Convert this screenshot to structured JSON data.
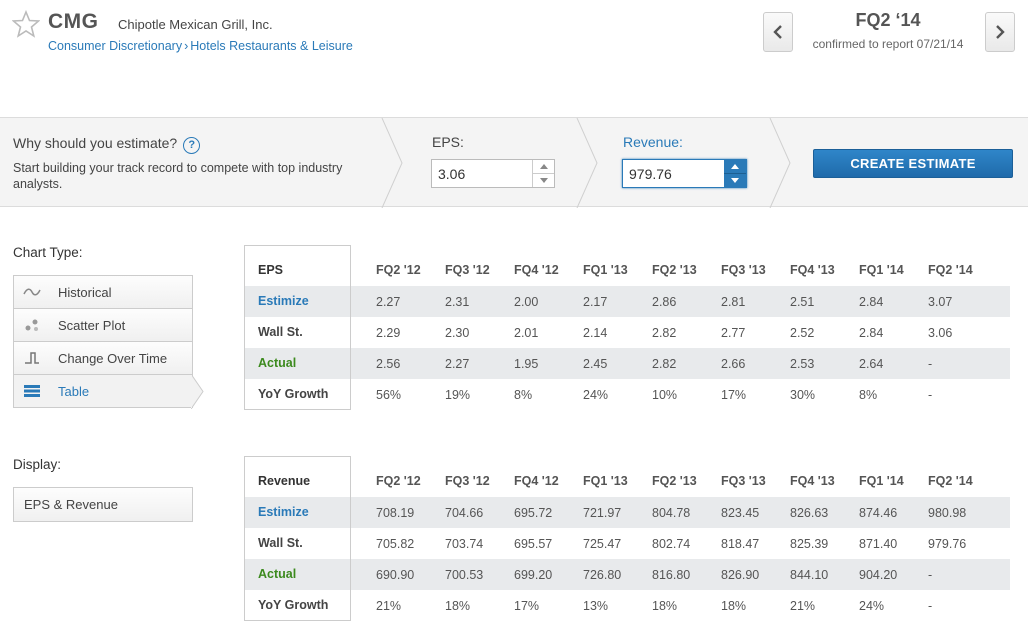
{
  "header": {
    "ticker": "CMG",
    "company": "Chipotle Mexican Grill, Inc.",
    "sector": "Consumer Discretionary",
    "industry": "Hotels Restaurants & Leisure",
    "breadcrumb_sep": "›",
    "quarter": "FQ2 ‘14",
    "confirmed": "confirmed to report 07/21/14"
  },
  "estimate": {
    "why": "Why should you estimate?",
    "help": "?",
    "description": "Start building your track record to compete with top industry analysts.",
    "eps_label": "EPS:",
    "eps_value": "3.06",
    "revenue_label": "Revenue:",
    "revenue_value": "979.76",
    "create_label": "CREATE ESTIMATE"
  },
  "chart_type": {
    "title": "Chart Type:",
    "items": [
      {
        "label": "Historical",
        "icon": "wave-icon"
      },
      {
        "label": "Scatter Plot",
        "icon": "scatter-icon"
      },
      {
        "label": "Change Over Time",
        "icon": "step-icon"
      },
      {
        "label": "Table",
        "icon": "table-icon",
        "active": true
      }
    ]
  },
  "display": {
    "title": "Display:",
    "value": "EPS & Revenue"
  },
  "eps_table": {
    "header": "EPS",
    "quarters": [
      "FQ2 '12",
      "FQ3 '12",
      "FQ4 '12",
      "FQ1 '13",
      "FQ2 '13",
      "FQ3 '13",
      "FQ4 '13",
      "FQ1 '14",
      "FQ2 '14"
    ],
    "rows": [
      {
        "label": "Estimize",
        "values": [
          "2.27",
          "2.31",
          "2.00",
          "2.17",
          "2.86",
          "2.81",
          "2.51",
          "2.84",
          "3.07"
        ]
      },
      {
        "label": "Wall St.",
        "values": [
          "2.29",
          "2.30",
          "2.01",
          "2.14",
          "2.82",
          "2.77",
          "2.52",
          "2.84",
          "3.06"
        ]
      },
      {
        "label": "Actual",
        "values": [
          "2.56",
          "2.27",
          "1.95",
          "2.45",
          "2.82",
          "2.66",
          "2.53",
          "2.64",
          "-"
        ]
      },
      {
        "label": "YoY Growth",
        "values": [
          "56%",
          "19%",
          "8%",
          "24%",
          "10%",
          "17%",
          "30%",
          "8%",
          "-"
        ]
      }
    ]
  },
  "revenue_table": {
    "header": "Revenue",
    "quarters": [
      "FQ2 '12",
      "FQ3 '12",
      "FQ4 '12",
      "FQ1 '13",
      "FQ2 '13",
      "FQ3 '13",
      "FQ4 '13",
      "FQ1 '14",
      "FQ2 '14"
    ],
    "rows": [
      {
        "label": "Estimize",
        "values": [
          "708.19",
          "704.66",
          "695.72",
          "721.97",
          "804.78",
          "823.45",
          "826.63",
          "874.46",
          "980.98"
        ]
      },
      {
        "label": "Wall St.",
        "values": [
          "705.82",
          "703.74",
          "695.57",
          "725.47",
          "802.74",
          "818.47",
          "825.39",
          "871.40",
          "979.76"
        ]
      },
      {
        "label": "Actual",
        "values": [
          "690.90",
          "700.53",
          "699.20",
          "726.80",
          "816.80",
          "826.90",
          "844.10",
          "904.20",
          "-"
        ]
      },
      {
        "label": "YoY Growth",
        "values": [
          "21%",
          "18%",
          "17%",
          "13%",
          "18%",
          "18%",
          "21%",
          "24%",
          "-"
        ]
      }
    ]
  },
  "colors": {
    "accent": "#2a7ab8",
    "actual": "#3c8a1e",
    "button": "#1f6aaa"
  }
}
